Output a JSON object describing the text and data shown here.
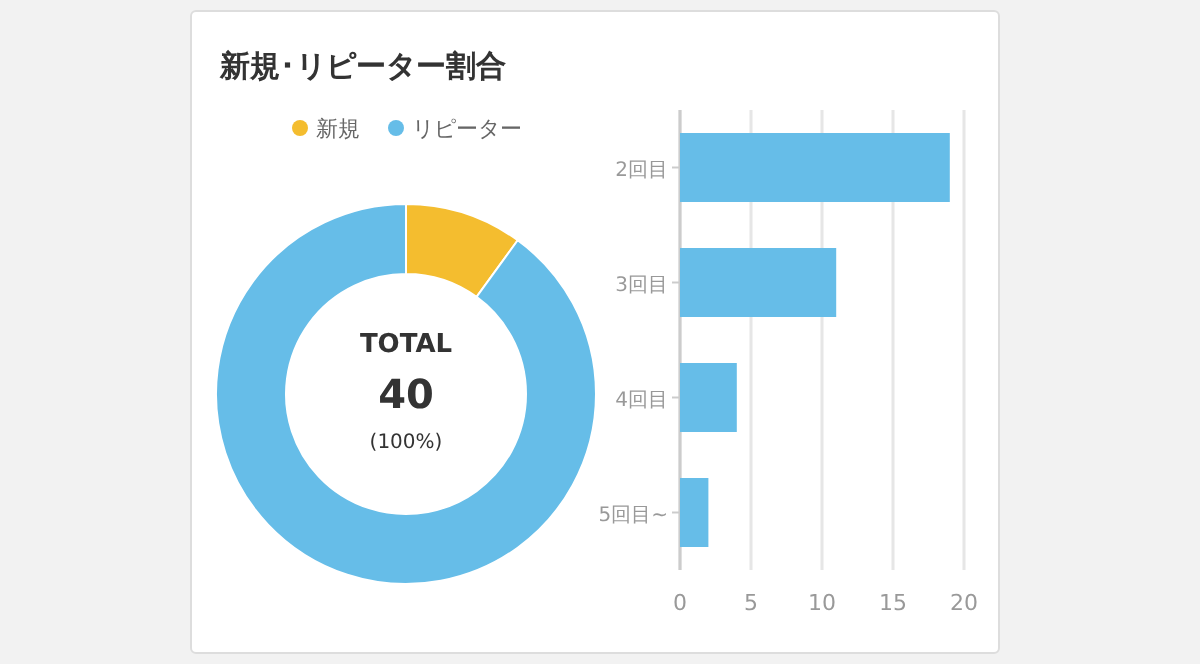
{
  "chart_data": [
    {
      "type": "donut",
      "title": "新規･リピーター割合",
      "categories": [
        "新規",
        "リピーター"
      ],
      "values": [
        10,
        90
      ],
      "colors": [
        "#f4bd2f",
        "#66bde8"
      ],
      "legend": "top",
      "annotations": [
        "TOTAL",
        "40",
        "(100%)"
      ]
    },
    {
      "type": "bar",
      "orientation": "horizontal",
      "categories": [
        "2回目",
        "3回目",
        "4回目",
        "5回目~"
      ],
      "series": [
        {
          "color": "#66bde8",
          "values": [
            19,
            11,
            4,
            2
          ]
        }
      ],
      "xlim": [
        0,
        20
      ],
      "xticks": [
        0,
        5,
        10,
        15,
        20
      ],
      "grid": "x"
    }
  ]
}
